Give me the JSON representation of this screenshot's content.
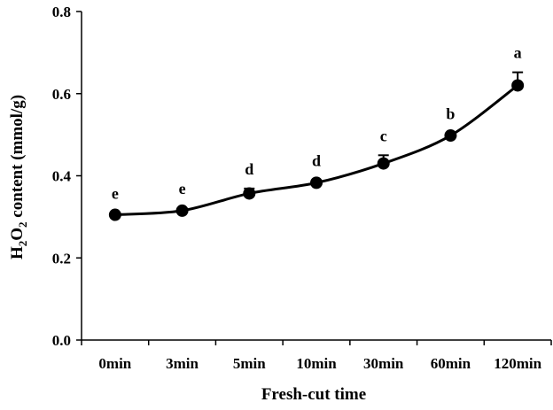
{
  "chart_data": {
    "type": "line",
    "categories": [
      "0min",
      "3min",
      "5min",
      "10min",
      "30min",
      "60min",
      "120min"
    ],
    "series": [
      {
        "values": [
          0.305,
          0.315,
          0.357,
          0.383,
          0.43,
          0.498,
          0.62
        ],
        "errors": [
          0.004,
          0.006,
          0.012,
          0.006,
          0.02,
          0.006,
          0.032
        ],
        "significance": [
          "e",
          "e",
          "d",
          "d",
          "c",
          "b",
          "a"
        ]
      }
    ],
    "xlabel": "Fresh-cut time",
    "ylabel": {
      "pre": "H",
      "sub1": "2",
      "mid": "O",
      "sub2": "2",
      "post": " content (mmol/g)"
    },
    "ylim": [
      0.0,
      0.8
    ],
    "yticks": [
      "0.0",
      "0.2",
      "0.4",
      "0.6",
      "0.8"
    ],
    "grid": false,
    "colors": {
      "line": "#000000",
      "marker": "#000000"
    }
  }
}
